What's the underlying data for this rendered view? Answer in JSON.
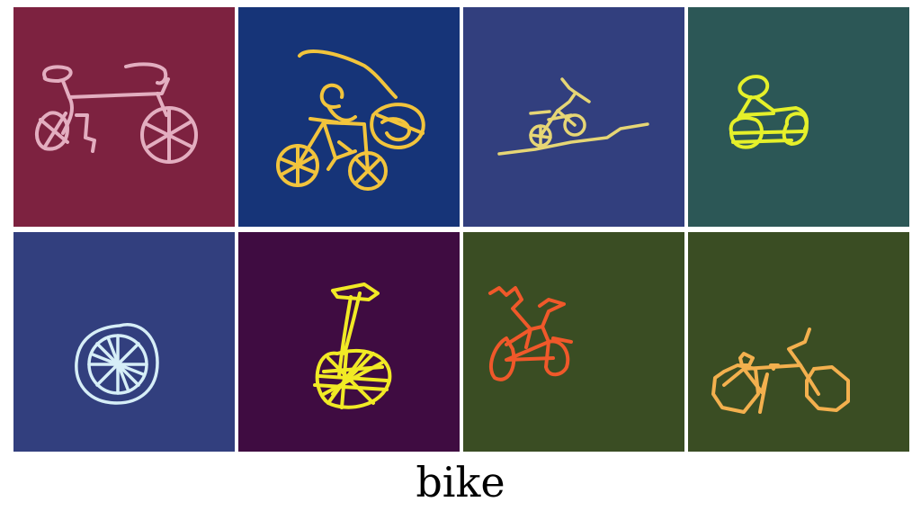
{
  "caption": "bike",
  "tiles": [
    {
      "bg": "#7d2240",
      "stroke": "#e3aec0",
      "icon": "bicycle-doodle"
    },
    {
      "bg": "#163478",
      "stroke": "#f2c43c",
      "icon": "bicycle-doodle"
    },
    {
      "bg": "#323f7e",
      "stroke": "#e6d675",
      "icon": "bicycle-doodle"
    },
    {
      "bg": "#2c5756",
      "stroke": "#e5f02a",
      "icon": "bicycle-doodle"
    },
    {
      "bg": "#323f7e",
      "stroke": "#d6eef7",
      "icon": "wheel-doodle"
    },
    {
      "bg": "#3f0c41",
      "stroke": "#f1ea25",
      "icon": "unicycle-doodle"
    },
    {
      "bg": "#3a4d23",
      "stroke": "#f0582a",
      "icon": "bicycle-doodle"
    },
    {
      "bg": "#3a4d23",
      "stroke": "#f3b04e",
      "icon": "bicycle-doodle"
    }
  ]
}
